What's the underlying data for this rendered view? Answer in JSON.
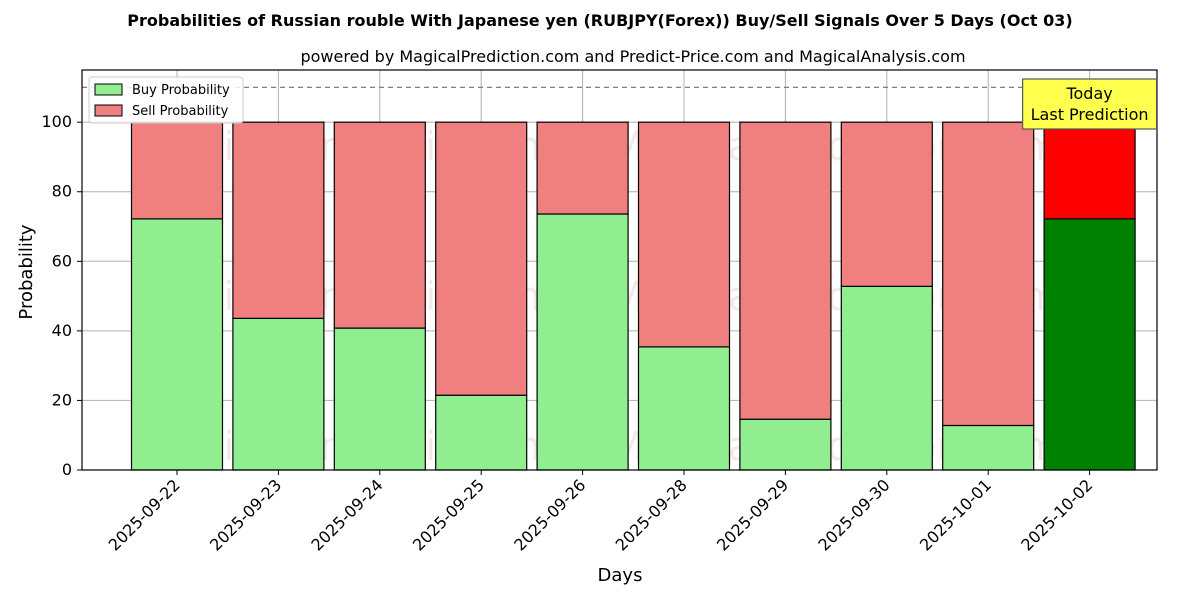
{
  "chart_data": {
    "type": "bar",
    "stacked": true,
    "title": "Probabilities of Russian rouble With Japanese yen (RUBJPY(Forex)) Buy/Sell Signals Over 5 Days (Oct 03)",
    "subtitle": "powered by MagicalPrediction.com and Predict-Price.com and MagicalAnalysis.com",
    "xlabel": "Days",
    "ylabel": "Probability",
    "ylim": [
      0,
      115
    ],
    "yticks": [
      0,
      20,
      40,
      60,
      80,
      100
    ],
    "grid": true,
    "legend_position": "top-left",
    "reference_line": 110,
    "categories": [
      "2025-09-22",
      "2025-09-23",
      "2025-09-24",
      "2025-09-25",
      "2025-09-26",
      "2025-09-28",
      "2025-09-29",
      "2025-09-30",
      "2025-10-01",
      "2025-10-02"
    ],
    "series": [
      {
        "name": "Buy Probability",
        "color": "#90ee90",
        "highlight_color": "#008000",
        "values": [
          72.2,
          43.6,
          40.8,
          21.5,
          73.6,
          35.4,
          14.6,
          52.8,
          12.8,
          72.2
        ]
      },
      {
        "name": "Sell Probability",
        "color": "#f08080",
        "highlight_color": "#ff0000",
        "values": [
          27.8,
          56.4,
          59.2,
          78.5,
          26.4,
          64.6,
          85.4,
          47.2,
          87.2,
          27.8
        ]
      }
    ],
    "highlight_index": 9,
    "annotation": {
      "lines": [
        "Today",
        "Last Prediction"
      ],
      "background": "#ffff4d"
    },
    "watermarks": [
      "MagicalAnalysis.com",
      "MagicalPrediction.com"
    ]
  }
}
